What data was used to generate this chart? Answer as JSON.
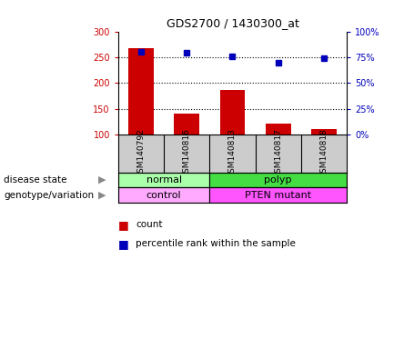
{
  "title": "GDS2700 / 1430300_at",
  "samples": [
    "GSM140792",
    "GSM140816",
    "GSM140813",
    "GSM140817",
    "GSM140818"
  ],
  "counts": [
    268,
    140,
    186,
    122,
    111
  ],
  "percentile_ranks": [
    80,
    79,
    76,
    70,
    74
  ],
  "ymin": 100,
  "ymax": 300,
  "yticks_left": [
    100,
    150,
    200,
    250,
    300
  ],
  "yticks_right": [
    0,
    25,
    50,
    75,
    100
  ],
  "bar_color": "#cc0000",
  "dot_color": "#0000bb",
  "disease_state": [
    {
      "label": "normal",
      "span": [
        0,
        1
      ],
      "color": "#aaffaa"
    },
    {
      "label": "polyp",
      "span": [
        2,
        4
      ],
      "color": "#44dd44"
    }
  ],
  "genotype": [
    {
      "label": "control",
      "span": [
        0,
        1
      ],
      "color": "#ffaaff"
    },
    {
      "label": "PTEN mutant",
      "span": [
        2,
        4
      ],
      "color": "#ff55ff"
    }
  ],
  "background_color": "#ffffff",
  "sample_box_color": "#cccccc",
  "tick_color_left": "#cc0000",
  "tick_color_right": "#0000bb",
  "row_label_disease": "disease state",
  "row_label_geno": "genotype/variation",
  "legend_count": "count",
  "legend_pct": "percentile rank within the sample"
}
